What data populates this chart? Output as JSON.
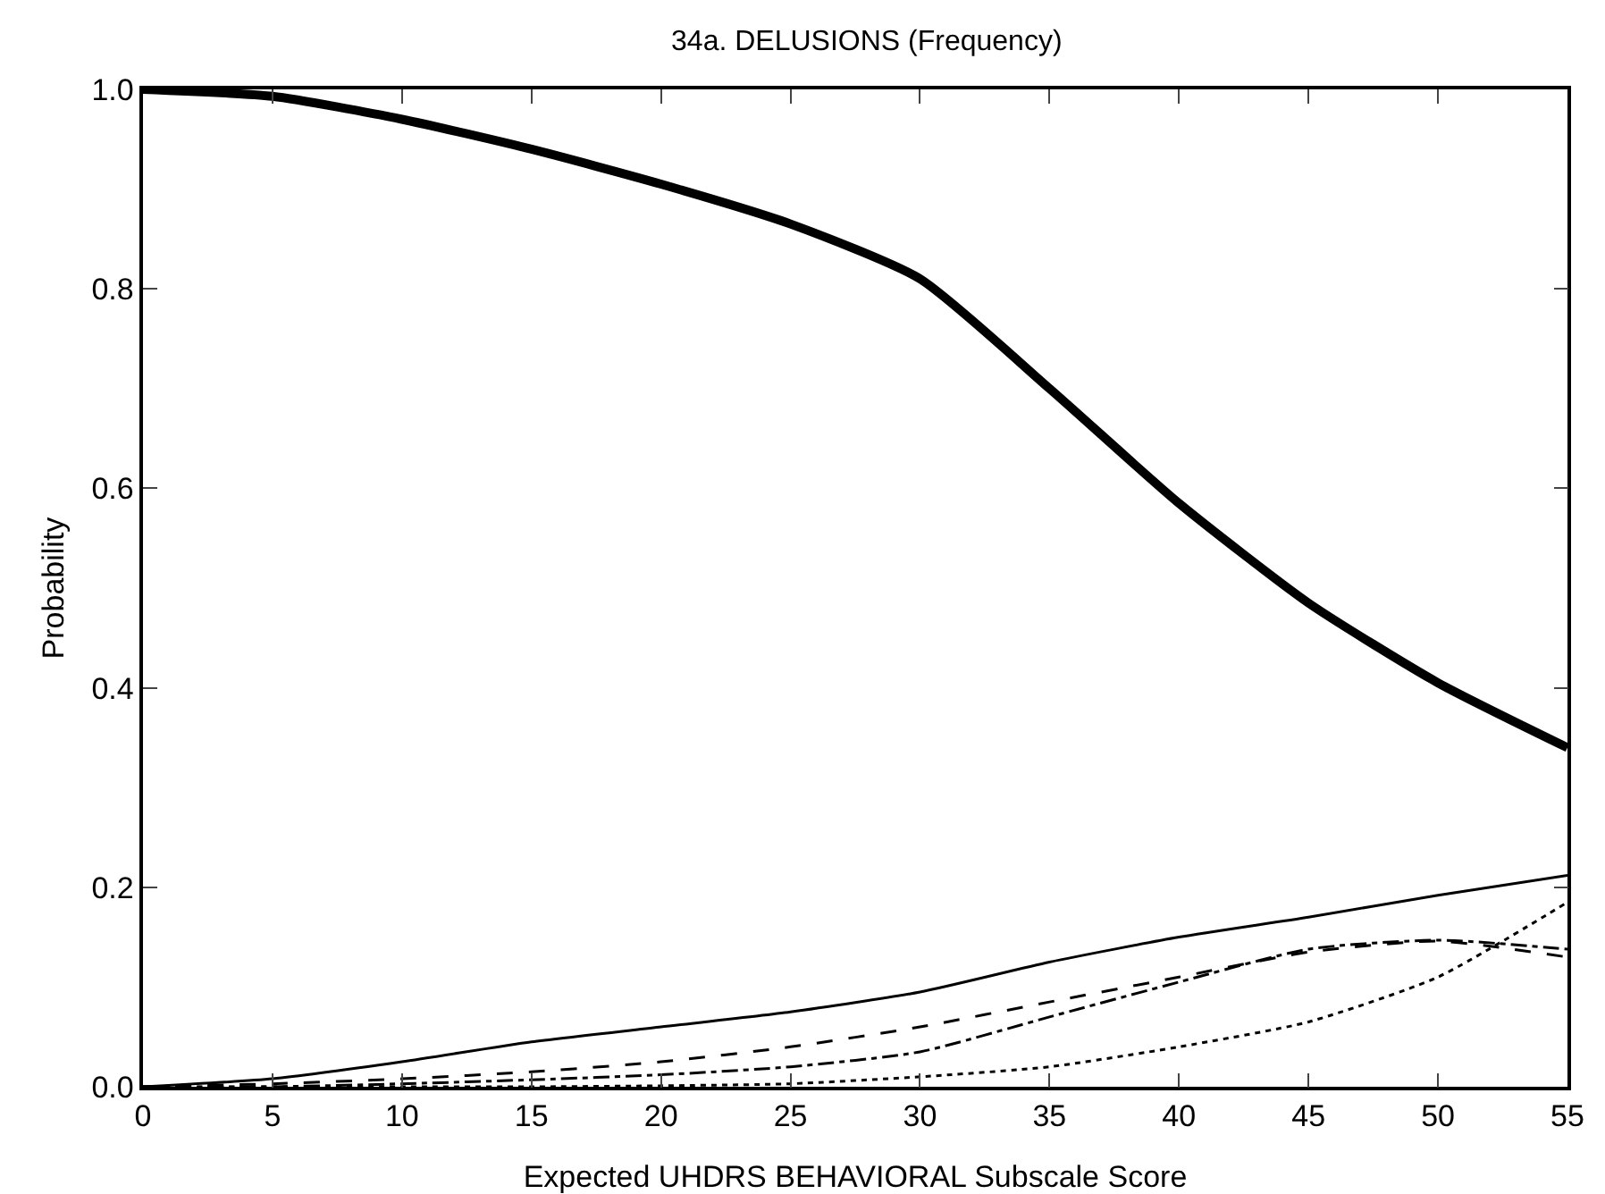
{
  "chart_data": {
    "type": "line",
    "title": "34a. DELUSIONS (Frequency)",
    "xlabel": "Expected UHDRS BEHAVIORAL Subscale Score",
    "ylabel": "Probability",
    "x": [
      0,
      5,
      10,
      15,
      20,
      25,
      30,
      35,
      40,
      45,
      50,
      55
    ],
    "series": [
      {
        "color": "#000000",
        "line_style": "solid",
        "values": [
          1.0,
          0.993,
          0.97,
          0.94,
          0.905,
          0.865,
          0.81,
          0.7,
          0.585,
          0.485,
          0.405,
          0.34
        ]
      },
      {
        "color": "#000000",
        "line_style": "solid",
        "values": [
          0,
          0.008,
          0.025,
          0.045,
          0.06,
          0.075,
          0.095,
          0.125,
          0.15,
          0.17,
          0.192,
          0.212
        ]
      },
      {
        "color": "#000000",
        "line_style": "dashed",
        "values": [
          0,
          0.003,
          0.008,
          0.015,
          0.025,
          0.04,
          0.06,
          0.085,
          0.11,
          0.135,
          0.146,
          0.13
        ]
      },
      {
        "color": "#000000",
        "line_style": "dashdot",
        "values": [
          0,
          0,
          0.003,
          0.007,
          0.012,
          0.02,
          0.035,
          0.07,
          0.105,
          0.138,
          0.147,
          0.138
        ]
      },
      {
        "color": "#000000",
        "line_style": "dotted",
        "values": [
          0,
          0,
          0,
          0,
          0.001,
          0.003,
          0.01,
          0.02,
          0.04,
          0.065,
          0.11,
          0.185
        ]
      }
    ],
    "xlim": [
      0,
      55
    ],
    "xticks": [
      0,
      5,
      10,
      15,
      20,
      25,
      30,
      35,
      40,
      45,
      50,
      55
    ],
    "ylim": [
      0,
      1
    ],
    "yticks": [
      {
        "value": 0,
        "label": "0.0"
      },
      {
        "value": 0.2,
        "label": "0.2"
      },
      {
        "value": 0.4,
        "label": "0.4"
      },
      {
        "value": 0.6,
        "label": "0.6"
      },
      {
        "value": 0.8,
        "label": "0.8"
      },
      {
        "value": 1,
        "label": "1.0"
      }
    ],
    "grid": false,
    "marker": "none"
  }
}
